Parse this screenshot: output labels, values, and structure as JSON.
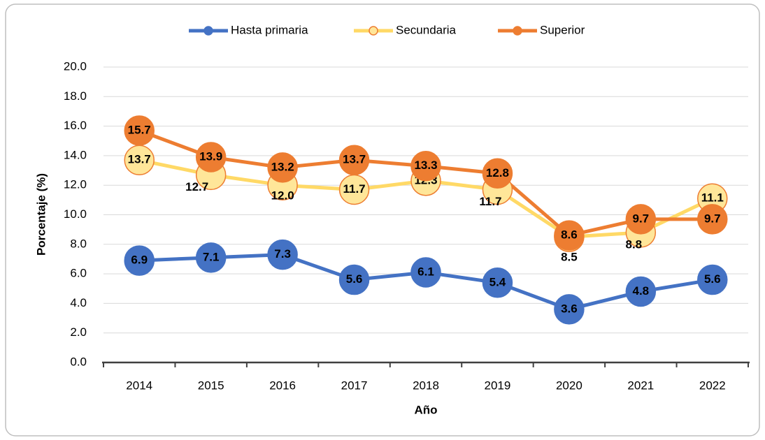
{
  "chart_data": {
    "type": "line",
    "x_label": "Año",
    "y_label": "Porcentaje (%)",
    "categories": [
      "2014",
      "2015",
      "2016",
      "2017",
      "2018",
      "2019",
      "2020",
      "2021",
      "2022"
    ],
    "series": [
      {
        "name": "Hasta primaria",
        "color": "#4472c4",
        "marker_fill": "#4472c4",
        "values": [
          6.9,
          7.1,
          7.3,
          5.6,
          6.1,
          5.4,
          3.6,
          4.8,
          5.6
        ],
        "value_labels": [
          "6.9",
          "7.1",
          "7.3",
          "5.6",
          "6.1",
          "5.4",
          "3.6",
          "4.8",
          "5.6"
        ]
      },
      {
        "name": "Secundaria",
        "color": "#ffd966",
        "marker_fill": "#ffe699",
        "marker_edge": "#ed7d31",
        "values": [
          13.7,
          12.7,
          12.0,
          11.7,
          12.3,
          11.7,
          8.5,
          8.8,
          11.1
        ],
        "value_labels": [
          "13.7",
          "12.7",
          "12.0",
          "11.7",
          "12.3",
          "11.7",
          "8.5",
          "8.8",
          "11.1"
        ]
      },
      {
        "name": "Superior",
        "color": "#ed7d31",
        "marker_fill": "#ed7d31",
        "values": [
          15.7,
          13.9,
          13.2,
          13.7,
          13.3,
          12.8,
          8.6,
          9.7,
          9.7
        ],
        "value_labels": [
          "15.7",
          "13.9",
          "13.2",
          "13.7",
          "13.3",
          "12.8",
          "8.6",
          "9.7",
          "9.7"
        ]
      }
    ],
    "ylim": [
      0,
      20
    ],
    "yticks": [
      {
        "value": 0,
        "label": "0.0"
      },
      {
        "value": 2,
        "label": "2.0"
      },
      {
        "value": 4,
        "label": "4.0"
      },
      {
        "value": 6,
        "label": "6.0"
      },
      {
        "value": 8,
        "label": "8.0"
      },
      {
        "value": 10,
        "label": "10.0"
      },
      {
        "value": 12,
        "label": "12.0"
      },
      {
        "value": 14,
        "label": "14.0"
      },
      {
        "value": 16,
        "label": "16.0"
      },
      {
        "value": 18,
        "label": "18.0"
      },
      {
        "value": 20,
        "label": "20.0"
      }
    ],
    "grid": true,
    "legend": "top"
  }
}
